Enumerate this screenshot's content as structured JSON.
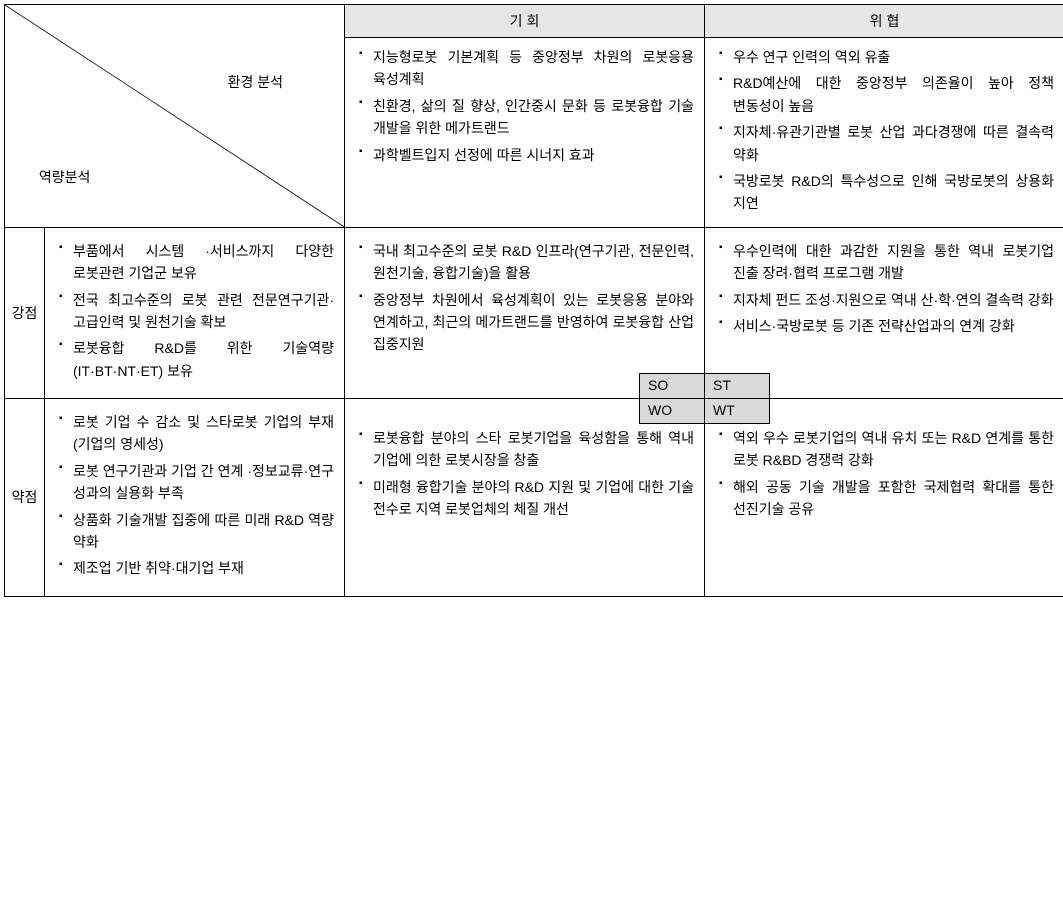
{
  "headers": {
    "opportunity": "기 회",
    "threat": "위 협",
    "environment_analysis": "환경 분석",
    "capability_analysis": "역량분석",
    "strength": "강점",
    "weakness": "약점"
  },
  "quadrant_labels": {
    "so": "SO",
    "st": "ST",
    "wo": "WO",
    "wt": "WT"
  },
  "cells": {
    "opportunity": [
      "지능형로봇 기본계획 등 중앙정부 차원의 로봇응용 육성계획",
      "친환경, 삶의 질 향상, 인간중시 문화 등 로봇융합 기술 개발을 위한 메가트랜드",
      "과학벨트입지 선정에 따른 시너지 효과"
    ],
    "threat": [
      "우수 연구 인력의 역외 유출",
      "R&D예산에 대한 중앙정부 의존율이 높아 정책 변동성이 높음",
      "지자체·유관기관별 로봇 산업 과다경쟁에 따른 결속력 약화",
      "국방로봇 R&D의 특수성으로 인해 국방로봇의 상용화 지연"
    ],
    "strength": [
      "부품에서 시스템 ·서비스까지 다양한 로봇관련 기업군 보유",
      "전국 최고수준의 로봇 관련 전문연구기관·고급인력 및 원천기술 확보",
      "로봇융합 R&D를 위한 기술역량(IT·BT·NT·ET) 보유"
    ],
    "so": [
      "국내 최고수준의 로봇 R&D 인프라(연구기관, 전문인력, 원천기술, 융합기술)을 활용",
      "중앙정부 차원에서 육성계획이 있는 로봇응용 분야와 연계하고, 최근의 메가트랜드를 반영하여 로봇융합 산업 집중지원"
    ],
    "st": [
      "우수인력에 대한 과감한 지원을 통한 역내 로봇기업 진출 장려·협력 프로그램 개발",
      "지자체 펀드 조성·지원으로 역내 산·학·연의 결속력 강화",
      "서비스·국방로봇 등 기존 전략산업과의 연계 강화"
    ],
    "weakness": [
      "로봇 기업 수 감소 및 스타로봇 기업의 부재(기업의 영세성)",
      "로봇 연구기관과 기업 간 연계 ·정보교류·연구 성과의 실용화 부족",
      "상품화 기술개발 집중에 따른 미래 R&D 역량 약화",
      "제조업 기반 취약·대기업 부재"
    ],
    "wo": [
      "로봇융합 분야의 스타 로봇기업을 육성함을 통해 역내 기업에 의한 로봇시장을 창출",
      "미래형 융합기술 분야의 R&D 지원 및 기업에 대한 기술 전수로 지역 로봇업체의 체질 개선"
    ],
    "wt": [
      "역외 우수 로봇기업의 역내 유치 또는 R&D 연계를 통한 로봇 R&BD 경쟁력 강화",
      "해외 공동 기술 개발을 포함한 국제협력 확대를 통한 선진기술 공유"
    ]
  }
}
